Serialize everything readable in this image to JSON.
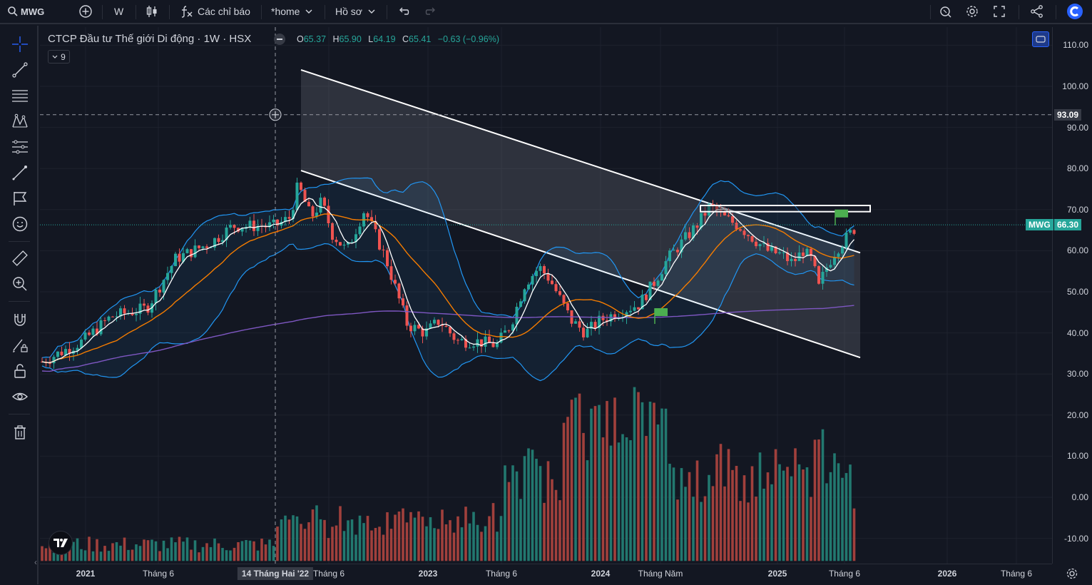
{
  "topbar": {
    "symbol": "MWG",
    "interval": "W",
    "indicators_label": "Các chỉ báo",
    "layout_label": "*home",
    "profile_label": "Hồ sơ"
  },
  "legend": {
    "title": "CTCP Đầu tư Thế giới Di động · 1W · HSX",
    "open_key": "O",
    "open": "65.37",
    "high_key": "H",
    "high": "65.90",
    "low_key": "L",
    "low": "64.19",
    "close_key": "C",
    "close": "65.41",
    "change": "−0.63 (−0.96%)",
    "collapsed_count": "9"
  },
  "price_axis": {
    "labels": [
      "110.00",
      "100.00",
      "90.00",
      "80.00",
      "70.00",
      "60.00",
      "50.00",
      "40.00",
      "30.00",
      "20.00",
      "10.00",
      "0.00",
      "-10.00"
    ],
    "crosshair_price": "93.09",
    "last_symbol": "MWG",
    "last_price": "66.30",
    "last_color": "#26a69a"
  },
  "time_axis": {
    "labels": [
      "2021",
      "Tháng 6",
      "Tháng 6",
      "2023",
      "Tháng 6",
      "2024",
      "Tháng Năm",
      "2025",
      "Tháng 6",
      "2026",
      "Tháng 6"
    ],
    "crosshair_time": "14 Tháng Hai '22"
  },
  "colors": {
    "up": "#26a69a",
    "down": "#ef5350",
    "bollinger": "#2196f3",
    "ema_fast": "#ffffff",
    "ema_mid": "#f57c00",
    "ema_slow": "#7e57c2",
    "channel_line": "#ffffff",
    "flag": "#4caf50"
  },
  "icons": {
    "toolbar": [
      "search-icon",
      "add-symbol-icon",
      "candles-icon",
      "indicators-icon",
      "undo-icon",
      "redo-icon",
      "alert-icon",
      "settings-icon",
      "fullscreen-icon",
      "share-icon",
      "brand-logo-icon"
    ],
    "left_tools": [
      "crosshair-icon",
      "trendline-icon",
      "fib-icon",
      "pattern-icon",
      "forecast-icon",
      "brush-icon",
      "flag-icon",
      "emoji-icon",
      "ruler-icon",
      "zoom-icon",
      "magnet-icon",
      "lock-drawing-icon",
      "lock-icon",
      "eye-icon",
      "trash-icon"
    ]
  }
}
